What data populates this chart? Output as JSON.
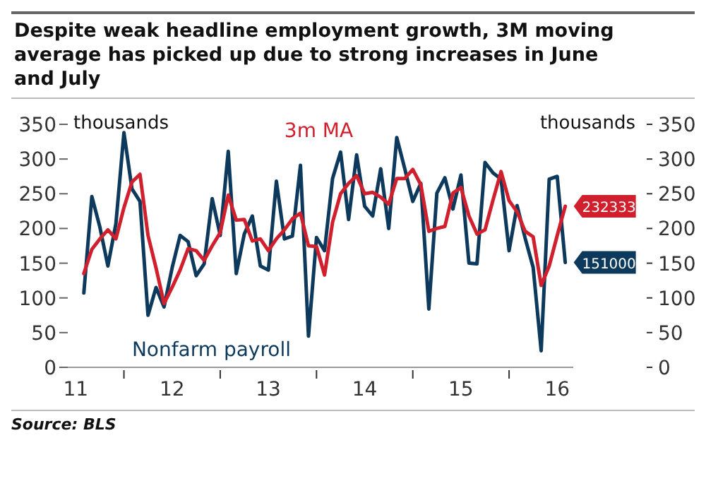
{
  "chart_data": {
    "type": "line",
    "title": "Despite weak headline employment growth, 3M moving average has picked up due to strong increases in June and July",
    "ylabel": "thousands",
    "y2label": "thousands",
    "x": [
      "2011-08",
      "2011-09",
      "2011-10",
      "2011-11",
      "2011-12",
      "2012-01",
      "2012-02",
      "2012-03",
      "2012-04",
      "2012-05",
      "2012-06",
      "2012-07",
      "2012-08",
      "2012-09",
      "2012-10",
      "2012-11",
      "2012-12",
      "2013-01",
      "2013-02",
      "2013-03",
      "2013-04",
      "2013-05",
      "2013-06",
      "2013-07",
      "2013-08",
      "2013-09",
      "2013-10",
      "2013-11",
      "2013-12",
      "2014-01",
      "2014-02",
      "2014-03",
      "2014-04",
      "2014-05",
      "2014-06",
      "2014-07",
      "2014-08",
      "2014-09",
      "2014-10",
      "2014-11",
      "2014-12",
      "2015-01",
      "2015-02",
      "2015-03",
      "2015-04",
      "2015-05",
      "2015-06",
      "2015-07",
      "2015-08",
      "2015-09",
      "2015-10",
      "2015-11",
      "2015-12",
      "2016-01",
      "2016-02",
      "2016-03",
      "2016-04",
      "2016-05",
      "2016-06",
      "2016-07",
      "2016-08"
    ],
    "series": [
      {
        "name": "Nonfarm payroll",
        "color": "#0d3a5c",
        "values": [
          107,
          246,
          202,
          146,
          207,
          338,
          257,
          239,
          75,
          115,
          87,
          143,
          190,
          181,
          132,
          149,
          243,
          190,
          311,
          135,
          192,
          218,
          146,
          140,
          268,
          185,
          189,
          291,
          45,
          187,
          168,
          272,
          310,
          213,
          306,
          232,
          218,
          286,
          200,
          331,
          286,
          239,
          265,
          84,
          251,
          273,
          228,
          277,
          150,
          149,
          295,
          280,
          271,
          168,
          233,
          186,
          144,
          24,
          271,
          275,
          151
        ]
      },
      {
        "name": "3m MA",
        "color": "#d0202e",
        "values": [
          135,
          170,
          185,
          198,
          185,
          230,
          267,
          278,
          190,
          143,
          92,
          115,
          140,
          171,
          168,
          154,
          175,
          194,
          248,
          212,
          213,
          182,
          185,
          168,
          185,
          198,
          214,
          222,
          175,
          174,
          133,
          209,
          250,
          265,
          276,
          250,
          252,
          245,
          235,
          272,
          272,
          285,
          263,
          196,
          200,
          203,
          251,
          259,
          218,
          192,
          198,
          241,
          282,
          240,
          224,
          196,
          188,
          118,
          146,
          190,
          232
        ]
      }
    ],
    "xlim": [
      "2011-06",
      "2016-09"
    ],
    "xticks": [
      {
        "value": "2011-07",
        "label": "11"
      },
      {
        "value": "2012-01",
        "label": null
      },
      {
        "value": "2012-07",
        "label": "12"
      },
      {
        "value": "2013-01",
        "label": null
      },
      {
        "value": "2013-07",
        "label": "13"
      },
      {
        "value": "2014-01",
        "label": null
      },
      {
        "value": "2014-07",
        "label": "14"
      },
      {
        "value": "2015-01",
        "label": null
      },
      {
        "value": "2015-07",
        "label": "15"
      },
      {
        "value": "2016-01",
        "label": null
      },
      {
        "value": "2016-07",
        "label": "16"
      }
    ],
    "ylim": [
      0,
      350
    ],
    "yticks": [
      0,
      50,
      100,
      150,
      200,
      250,
      300,
      350
    ],
    "y2lim": [
      0,
      350
    ],
    "y2ticks": [
      0,
      50,
      100,
      150,
      200,
      250,
      300,
      350
    ],
    "grid": false,
    "marker": "none",
    "line_style": "solid",
    "annotations": [
      {
        "text": "232333",
        "x": "2016-08",
        "y": 232
      },
      {
        "text": "151000",
        "x": "2016-08",
        "y": 151
      },
      "Source: BLS"
    ]
  }
}
